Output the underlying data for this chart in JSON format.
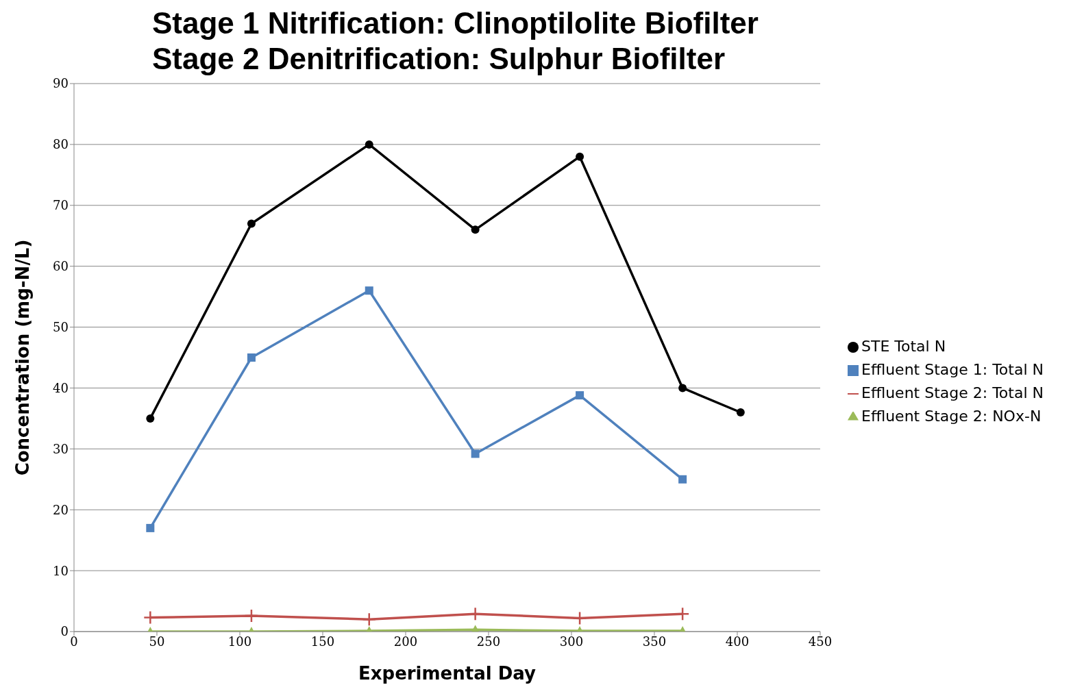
{
  "chart_data": {
    "type": "line",
    "title": "Stage 1 Nitrification: Clinoptilolite Biofilter\nStage 2 Denitrification: Sulphur Biofilter",
    "xlabel": "Experimental Day",
    "ylabel": "Concentration (mg-N/L)",
    "xlim": [
      0,
      450
    ],
    "xticks": [
      0,
      50,
      100,
      150,
      200,
      250,
      300,
      350,
      400,
      450
    ],
    "ylim": [
      0,
      90
    ],
    "yticks": [
      0,
      10,
      20,
      30,
      40,
      50,
      60,
      70,
      80,
      90
    ],
    "grid": "y",
    "legend": "right",
    "series": [
      {
        "name": "STE Total N",
        "color": "#000000",
        "marker": "circle",
        "x": [
          46,
          107,
          178,
          242,
          305,
          367,
          402
        ],
        "values": [
          35,
          67,
          80,
          66,
          78,
          40,
          36
        ]
      },
      {
        "name": "Effluent Stage 1: Total N",
        "color": "#4f81bd",
        "marker": "square",
        "x": [
          46,
          107,
          178,
          242,
          305,
          367
        ],
        "values": [
          17,
          45,
          56,
          29.2,
          38.8,
          25
        ]
      },
      {
        "name": "Effluent Stage 2: Total N",
        "color": "#c0504d",
        "marker": "cross",
        "x": [
          46,
          107,
          178,
          242,
          305,
          367
        ],
        "values": [
          2.3,
          2.6,
          2.0,
          2.9,
          2.2,
          2.9
        ]
      },
      {
        "name": "Effluent Stage 2: NOx-N",
        "color": "#9bbb59",
        "marker": "triangle",
        "x": [
          46,
          107,
          178,
          242,
          305,
          367
        ],
        "values": [
          0,
          0,
          0.1,
          0.3,
          0.1,
          0.1
        ]
      }
    ]
  }
}
